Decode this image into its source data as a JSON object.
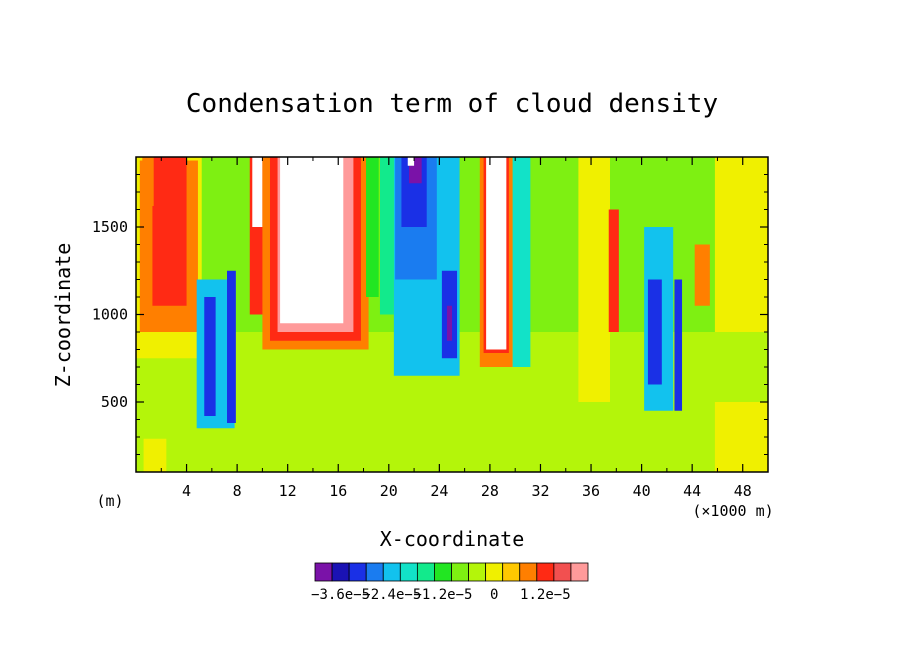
{
  "chart_data": {
    "type": "heatmap",
    "title": "Condensation term of cloud density",
    "xlabel": "X-coordinate",
    "ylabel": "Z-coordinate",
    "x_unit_left": "(m)",
    "x_unit_right": "(×1000 m)",
    "xlim": [
      0,
      50
    ],
    "ylim": [
      100,
      1900
    ],
    "x_ticks": [
      4,
      8,
      12,
      16,
      20,
      24,
      28,
      32,
      36,
      40,
      44,
      48
    ],
    "x_tick_labels": [
      "4",
      "8",
      "12",
      "16",
      "20",
      "24",
      "28",
      "32",
      "36",
      "40",
      "44",
      "48"
    ],
    "y_ticks": [
      500,
      1000,
      1500
    ],
    "y_tick_labels": [
      "500",
      "1000",
      "1500"
    ],
    "colorbar": {
      "colors": [
        "#7a12a8",
        "#1a12b4",
        "#1a30e6",
        "#1a7cf0",
        "#12c2ee",
        "#12e2c8",
        "#12ea8c",
        "#22e622",
        "#7ef012",
        "#b4f50a",
        "#f0f000",
        "#ffc800",
        "#ff7f00",
        "#ff2a14",
        "#f25050",
        "#ff9a9a"
      ],
      "labels": [
        "−3.6e−5",
        "−2.4e−5",
        "−1.2e−5",
        "0",
        "1.2e−5"
      ],
      "label_values": [
        -3.6e-05,
        -2.4e-05,
        -1.2e-05,
        0,
        1.2e-05
      ],
      "min": -4.2e-05,
      "max": 2.2e-05,
      "above_max_color": "#ffffff"
    },
    "background_level": "#b4f50a",
    "regions": [
      {
        "x": [
          0,
          50
        ],
        "z": [
          100,
          700
        ],
        "level": "#b4f50a"
      },
      {
        "x": [
          0,
          50
        ],
        "z": [
          700,
          900
        ],
        "level": "#b4f50a"
      },
      {
        "x": [
          0,
          50
        ],
        "z": [
          900,
          1900
        ],
        "level": "#7ef012"
      },
      {
        "x": [
          0.6,
          2.4
        ],
        "z": [
          100,
          290
        ],
        "level": "#f0f000"
      },
      {
        "x": [
          45.8,
          50
        ],
        "z": [
          100,
          500
        ],
        "level": "#f0f000"
      },
      {
        "x": [
          45.8,
          50
        ],
        "z": [
          900,
          1900
        ],
        "level": "#f0f000"
      },
      {
        "x": [
          0,
          5.2
        ],
        "z": [
          750,
          1900
        ],
        "level": "#f0f000"
      },
      {
        "x": [
          0.3,
          4.9
        ],
        "z": [
          900,
          1880
        ],
        "level": "#ff7f00"
      },
      {
        "x": [
          1.3,
          4.0
        ],
        "z": [
          1050,
          1900
        ],
        "level": "#ff2a14"
      },
      {
        "x": [
          0.5,
          1.4
        ],
        "z": [
          1620,
          1900
        ],
        "level": "#ff7f00"
      },
      {
        "x": [
          9.0,
          10.3
        ],
        "z": [
          1000,
          1900
        ],
        "level": "#ff2a14"
      },
      {
        "x": [
          9.2,
          10.0
        ],
        "z": [
          1500,
          1900
        ],
        "level": "#ffffff"
      },
      {
        "x": [
          10.0,
          18.4
        ],
        "z": [
          800,
          1900
        ],
        "level": "#ff7f00"
      },
      {
        "x": [
          10.6,
          17.8
        ],
        "z": [
          850,
          1900
        ],
        "level": "#ff2a14"
      },
      {
        "x": [
          11.2,
          17.2
        ],
        "z": [
          900,
          1900
        ],
        "level": "#ff9a9a"
      },
      {
        "x": [
          11.4,
          16.4
        ],
        "z": [
          950,
          1900
        ],
        "level": "#ffffff"
      },
      {
        "x": [
          18.2,
          19.2
        ],
        "z": [
          1100,
          1900
        ],
        "level": "#22e622"
      },
      {
        "x": [
          19.3,
          20.4
        ],
        "z": [
          1000,
          1900
        ],
        "level": "#12ea8c"
      },
      {
        "x": [
          20.4,
          25.6
        ],
        "z": [
          650,
          1900
        ],
        "level": "#12c2ee"
      },
      {
        "x": [
          20.5,
          23.8
        ],
        "z": [
          1200,
          1900
        ],
        "level": "#1a7cf0"
      },
      {
        "x": [
          21.0,
          23.0
        ],
        "z": [
          1500,
          1900
        ],
        "level": "#1a30e6"
      },
      {
        "x": [
          21.6,
          22.6
        ],
        "z": [
          1750,
          1900
        ],
        "level": "#7a12a8"
      },
      {
        "x": [
          21.5,
          22.0
        ],
        "z": [
          1850,
          1900
        ],
        "level": "#ffffff"
      },
      {
        "x": [
          24.2,
          25.4
        ],
        "z": [
          750,
          1250
        ],
        "level": "#1a30e6"
      },
      {
        "x": [
          24.6,
          25.0
        ],
        "z": [
          850,
          1050
        ],
        "level": "#7a12a8"
      },
      {
        "x": [
          27.2,
          29.8
        ],
        "z": [
          700,
          1900
        ],
        "level": "#ff7f00"
      },
      {
        "x": [
          27.5,
          29.5
        ],
        "z": [
          780,
          1900
        ],
        "level": "#ff2a14"
      },
      {
        "x": [
          27.7,
          29.3
        ],
        "z": [
          800,
          1900
        ],
        "level": "#ffffff"
      },
      {
        "x": [
          29.8,
          31.2
        ],
        "z": [
          700,
          1900
        ],
        "level": "#12e2c8"
      },
      {
        "x": [
          35.0,
          37.5
        ],
        "z": [
          500,
          1900
        ],
        "level": "#f0f000"
      },
      {
        "x": [
          37.4,
          38.2
        ],
        "z": [
          900,
          1600
        ],
        "level": "#ff2a14"
      },
      {
        "x": [
          40.2,
          42.5
        ],
        "z": [
          450,
          1500
        ],
        "level": "#12c2ee"
      },
      {
        "x": [
          40.5,
          41.6
        ],
        "z": [
          600,
          1200
        ],
        "level": "#1a30e6"
      },
      {
        "x": [
          42.6,
          43.2
        ],
        "z": [
          450,
          1200
        ],
        "level": "#1a30e6"
      },
      {
        "x": [
          44.2,
          45.4
        ],
        "z": [
          1050,
          1400
        ],
        "level": "#ff7f00"
      },
      {
        "x": [
          4.8,
          7.8
        ],
        "z": [
          350,
          1200
        ],
        "level": "#12c2ee"
      },
      {
        "x": [
          5.4,
          6.3
        ],
        "z": [
          420,
          1100
        ],
        "level": "#1a30e6"
      },
      {
        "x": [
          7.2,
          7.9
        ],
        "z": [
          380,
          1250
        ],
        "level": "#1a30e6"
      }
    ]
  }
}
